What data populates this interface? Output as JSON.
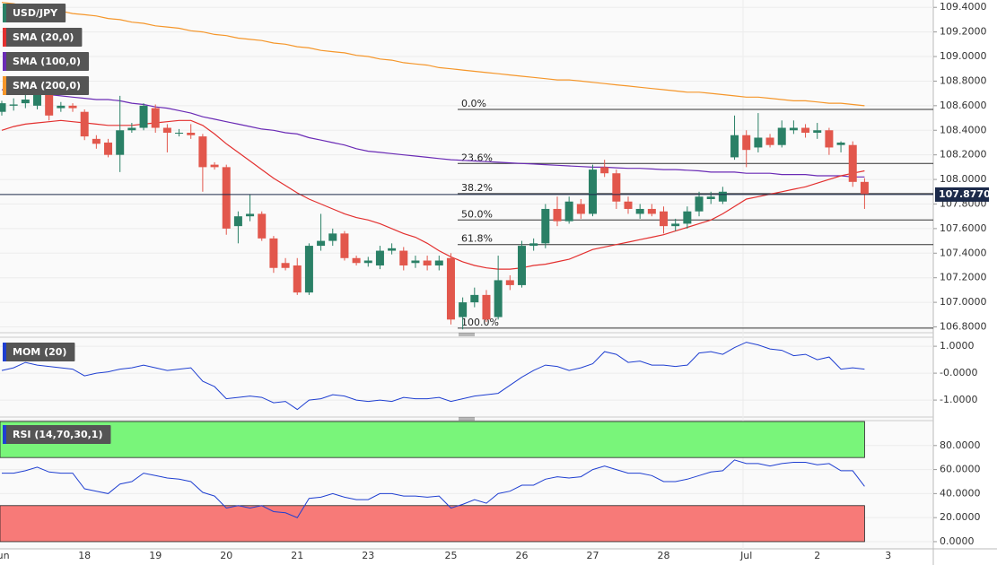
{
  "chart_data": [
    {
      "type": "candlestick",
      "categories": [
        "Jun",
        null,
        null,
        null,
        null,
        null,
        null,
        "18",
        null,
        null,
        null,
        null,
        null,
        "19",
        null,
        null,
        null,
        null,
        null,
        "20",
        null,
        null,
        null,
        null,
        null,
        "21",
        null,
        null,
        null,
        null,
        null,
        "23",
        null,
        null,
        null,
        null,
        null,
        null,
        "25",
        null,
        null,
        null,
        null,
        null,
        "26",
        null,
        null,
        null,
        null,
        null,
        "27",
        null,
        null,
        null,
        null,
        null,
        "28",
        null,
        null,
        null,
        null,
        null,
        null,
        "Jul",
        null,
        null,
        null,
        null,
        null,
        "2",
        null,
        null,
        null,
        null,
        null,
        "3"
      ],
      "series": [
        {
          "name": "USD/JPY",
          "up_color": "#2a8066",
          "down_color": "#e2574c",
          "open": [
            108.55,
            108.6,
            108.62,
            108.6,
            108.7,
            108.58,
            108.6,
            108.55,
            108.33,
            108.3,
            108.2,
            108.4,
            108.42,
            108.58,
            108.42,
            108.38,
            108.38,
            108.35,
            108.12,
            108.1,
            107.62,
            107.7,
            107.72,
            107.52,
            107.32,
            107.3,
            107.08,
            107.46,
            107.5,
            107.56,
            107.36,
            107.32,
            107.3,
            107.42,
            107.42,
            107.32,
            107.34,
            107.3,
            107.36,
            106.88,
            107.0,
            107.06,
            106.88,
            107.18,
            107.14,
            107.46,
            107.48,
            107.76,
            107.66,
            107.8,
            107.72,
            108.1,
            108.05,
            107.82,
            107.72,
            107.76,
            107.74,
            107.62,
            107.64,
            107.74,
            107.84,
            107.82,
            108.18,
            108.36,
            108.26,
            108.34,
            108.28,
            108.4,
            108.42,
            108.38,
            108.4,
            108.28,
            108.28,
            107.98,
            null,
            null
          ],
          "high": [
            108.64,
            108.66,
            108.7,
            108.74,
            108.73,
            108.63,
            108.62,
            108.57,
            108.36,
            108.33,
            108.68,
            108.46,
            108.62,
            108.61,
            108.45,
            108.41,
            108.45,
            108.37,
            108.14,
            108.12,
            107.74,
            107.88,
            107.74,
            107.54,
            107.36,
            107.36,
            107.48,
            107.72,
            107.6,
            107.58,
            107.38,
            107.37,
            107.46,
            107.48,
            107.45,
            107.38,
            107.38,
            107.38,
            107.4,
            107.04,
            107.12,
            107.1,
            107.38,
            107.22,
            107.5,
            107.52,
            107.8,
            107.86,
            107.86,
            107.84,
            108.12,
            108.16,
            108.08,
            107.86,
            107.8,
            107.8,
            107.78,
            107.68,
            107.78,
            107.9,
            107.9,
            107.94,
            108.52,
            108.4,
            108.54,
            108.37,
            108.48,
            108.48,
            108.45,
            108.46,
            108.42,
            108.31,
            108.31,
            108.01,
            null,
            null
          ],
          "low": [
            108.52,
            108.56,
            108.58,
            108.57,
            108.48,
            108.55,
            108.55,
            108.32,
            108.25,
            108.18,
            108.06,
            108.38,
            108.4,
            108.38,
            108.22,
            108.35,
            108.33,
            107.9,
            108.08,
            107.55,
            107.48,
            107.66,
            107.5,
            107.24,
            107.26,
            107.06,
            107.06,
            107.42,
            107.46,
            107.34,
            107.3,
            107.29,
            107.27,
            107.39,
            107.26,
            107.28,
            107.26,
            107.26,
            106.82,
            106.78,
            106.96,
            106.84,
            106.86,
            107.1,
            107.12,
            107.42,
            107.44,
            107.62,
            107.64,
            107.68,
            107.7,
            108.02,
            107.76,
            107.72,
            107.68,
            107.7,
            107.56,
            107.58,
            107.6,
            107.7,
            107.8,
            107.8,
            108.16,
            108.1,
            108.22,
            108.26,
            108.26,
            108.37,
            108.34,
            108.33,
            108.2,
            108.22,
            107.94,
            107.76,
            null,
            null
          ],
          "close": [
            108.62,
            108.61,
            108.65,
            108.7,
            108.52,
            108.6,
            108.58,
            108.35,
            108.29,
            108.2,
            108.4,
            108.42,
            108.6,
            108.42,
            108.38,
            108.38,
            108.36,
            108.1,
            108.1,
            107.6,
            107.7,
            107.72,
            107.52,
            107.28,
            107.28,
            107.08,
            107.46,
            107.5,
            107.56,
            107.36,
            107.32,
            107.34,
            107.42,
            107.44,
            107.3,
            107.34,
            107.3,
            107.34,
            106.86,
            107.0,
            107.06,
            106.86,
            107.18,
            107.14,
            107.46,
            107.48,
            107.76,
            107.66,
            107.82,
            107.72,
            108.08,
            108.05,
            107.82,
            107.76,
            107.76,
            107.72,
            107.62,
            107.64,
            107.74,
            107.86,
            107.86,
            107.9,
            108.36,
            108.24,
            108.34,
            108.28,
            108.42,
            108.42,
            108.38,
            108.4,
            108.26,
            108.3,
            107.98,
            107.877,
            null,
            null
          ]
        }
      ],
      "overlays": [
        {
          "name": "SMA (20,0)",
          "color": "#e3302f",
          "values": [
            108.4,
            108.43,
            108.45,
            108.46,
            108.47,
            108.48,
            108.47,
            108.46,
            108.45,
            108.44,
            108.44,
            108.44,
            108.45,
            108.46,
            108.47,
            108.48,
            108.48,
            108.44,
            108.37,
            108.29,
            108.22,
            108.15,
            108.08,
            108.01,
            107.95,
            107.89,
            107.84,
            107.8,
            107.76,
            107.72,
            107.69,
            107.67,
            107.64,
            107.6,
            107.56,
            107.53,
            107.48,
            107.42,
            107.37,
            107.33,
            107.3,
            107.28,
            107.27,
            107.27,
            107.28,
            107.3,
            107.31,
            107.33,
            107.35,
            107.39,
            107.43,
            107.45,
            107.47,
            107.49,
            107.51,
            107.53,
            107.55,
            107.58,
            107.61,
            107.64,
            107.67,
            107.72,
            107.78,
            107.84,
            107.86,
            107.88,
            107.9,
            107.92,
            107.94,
            107.97,
            108.0,
            108.03,
            108.05,
            108.07,
            null,
            null
          ]
        },
        {
          "name": "SMA (100,0)",
          "color": "#6a2bb5",
          "values": [
            108.73,
            108.72,
            108.71,
            108.7,
            108.69,
            108.68,
            108.67,
            108.66,
            108.65,
            108.65,
            108.64,
            108.62,
            108.61,
            108.59,
            108.58,
            108.56,
            108.54,
            108.51,
            108.49,
            108.47,
            108.45,
            108.43,
            108.41,
            108.4,
            108.38,
            108.37,
            108.34,
            108.32,
            108.3,
            108.28,
            108.25,
            108.23,
            108.22,
            108.21,
            108.2,
            108.19,
            108.18,
            108.17,
            108.16,
            108.155,
            108.15,
            108.145,
            108.14,
            108.135,
            108.13,
            108.125,
            108.12,
            108.115,
            108.11,
            108.105,
            108.1,
            108.1,
            108.095,
            108.09,
            108.09,
            108.085,
            108.08,
            108.08,
            108.075,
            108.07,
            108.06,
            108.06,
            108.06,
            108.05,
            108.05,
            108.05,
            108.04,
            108.04,
            108.04,
            108.03,
            108.03,
            108.03,
            108.02,
            108.02,
            null,
            null
          ]
        },
        {
          "name": "SMA (200,0)",
          "color": "#f5962a",
          "values": [
            109.44,
            109.43,
            109.41,
            109.4,
            109.38,
            109.37,
            109.35,
            109.34,
            109.33,
            109.31,
            109.3,
            109.28,
            109.27,
            109.25,
            109.24,
            109.23,
            109.21,
            109.2,
            109.18,
            109.17,
            109.15,
            109.14,
            109.13,
            109.11,
            109.1,
            109.08,
            109.07,
            109.05,
            109.04,
            109.03,
            109.01,
            109.0,
            108.98,
            108.97,
            108.95,
            108.94,
            108.93,
            108.91,
            108.9,
            108.89,
            108.88,
            108.87,
            108.86,
            108.85,
            108.84,
            108.83,
            108.82,
            108.81,
            108.81,
            108.8,
            108.79,
            108.78,
            108.77,
            108.76,
            108.75,
            108.74,
            108.73,
            108.72,
            108.71,
            108.71,
            108.7,
            108.69,
            108.68,
            108.67,
            108.67,
            108.66,
            108.65,
            108.64,
            108.64,
            108.63,
            108.62,
            108.62,
            108.61,
            108.6,
            null,
            null
          ]
        }
      ],
      "fib_levels": [
        {
          "label": "0.0%",
          "value": 108.57
        },
        {
          "label": "23.6%",
          "value": 108.13
        },
        {
          "label": "38.2%",
          "value": 107.885
        },
        {
          "label": "50.0%",
          "value": 107.67
        },
        {
          "label": "61.8%",
          "value": 107.47
        },
        {
          "label": "100.0%",
          "value": 106.79
        }
      ],
      "last_price": {
        "value": 107.877,
        "label": "107.8770",
        "color": "#1c2a4a"
      },
      "ylim": [
        106.76,
        109.46
      ],
      "yticks": [
        {
          "value": 109.4,
          "label": "109.4000"
        },
        {
          "value": 109.2,
          "label": "109.2000"
        },
        {
          "value": 109.0,
          "label": "109.0000"
        },
        {
          "value": 108.8,
          "label": "108.8000"
        },
        {
          "value": 108.6,
          "label": "108.6000"
        },
        {
          "value": 108.4,
          "label": "108.4000"
        },
        {
          "value": 108.2,
          "label": "108.2000"
        },
        {
          "value": 108.0,
          "label": "108.0000"
        },
        {
          "value": 107.8,
          "label": "107.8000"
        },
        {
          "value": 107.6,
          "label": "107.6000"
        },
        {
          "value": 107.4,
          "label": "107.4000"
        },
        {
          "value": 107.2,
          "label": "107.2000"
        },
        {
          "value": 107.0,
          "label": "107.0000"
        },
        {
          "value": 106.8,
          "label": "106.8000"
        }
      ],
      "grid": true
    },
    {
      "type": "line",
      "series": [
        {
          "name": "MOM (20)",
          "color": "#1f3fd1",
          "values": [
            0.1,
            0.2,
            0.4,
            0.3,
            0.25,
            0.2,
            0.15,
            -0.1,
            0.0,
            0.05,
            0.15,
            0.2,
            0.3,
            0.2,
            0.1,
            0.15,
            0.2,
            -0.3,
            -0.5,
            -0.95,
            -0.9,
            -0.85,
            -0.9,
            -1.1,
            -1.05,
            -1.35,
            -1.0,
            -0.95,
            -0.8,
            -0.85,
            -1.0,
            -1.05,
            -1.0,
            -1.05,
            -0.9,
            -0.95,
            -0.95,
            -0.9,
            -1.05,
            -0.95,
            -0.85,
            -0.8,
            -0.75,
            -0.45,
            -0.15,
            0.1,
            0.3,
            0.25,
            0.1,
            0.2,
            0.35,
            0.8,
            0.7,
            0.4,
            0.45,
            0.3,
            0.3,
            0.25,
            0.3,
            0.75,
            0.8,
            0.7,
            0.95,
            1.15,
            1.05,
            0.9,
            0.85,
            0.65,
            0.7,
            0.5,
            0.6,
            0.15,
            0.2,
            0.15,
            null,
            null
          ]
        }
      ],
      "ylim": [
        -1.53,
        1.27
      ],
      "yticks": [
        {
          "value": 1,
          "label": "1.0000"
        },
        {
          "value": 0,
          "label": "-0.0000"
        },
        {
          "value": -1,
          "label": "-1.0000"
        }
      ],
      "grid": true
    },
    {
      "type": "line",
      "series": [
        {
          "name": "RSI (14,70,30,1)",
          "color": "#1f3fd1",
          "values": [
            57,
            57,
            59,
            62,
            58,
            57,
            57,
            44,
            42,
            40,
            48,
            50,
            57,
            55,
            53,
            52,
            50,
            41,
            38,
            28,
            30,
            28,
            30,
            25,
            24,
            20,
            36,
            37,
            40,
            37,
            35,
            35,
            40,
            40,
            38,
            38,
            37,
            38,
            28,
            31,
            35,
            32,
            40,
            42,
            47,
            47,
            52,
            54,
            53,
            54,
            60,
            63,
            60,
            57,
            57,
            55,
            50,
            50,
            52,
            55,
            58,
            59,
            68,
            65,
            65,
            63,
            65,
            66,
            66,
            64,
            65,
            59,
            59,
            46,
            null,
            null
          ]
        }
      ],
      "bands": [
        {
          "from": 70,
          "to": 100,
          "color": "#79f57a"
        },
        {
          "from": 0,
          "to": 30,
          "color": "#f77a78"
        }
      ],
      "ylim": [
        -6,
        100
      ],
      "yticks": [
        {
          "value": 80,
          "label": "80.0000"
        },
        {
          "value": 60,
          "label": "60.0000"
        },
        {
          "value": 40,
          "label": "40.0000"
        },
        {
          "value": 20,
          "label": "20.0000"
        },
        {
          "value": 0,
          "label": "0.0000"
        }
      ],
      "grid": true
    }
  ]
}
